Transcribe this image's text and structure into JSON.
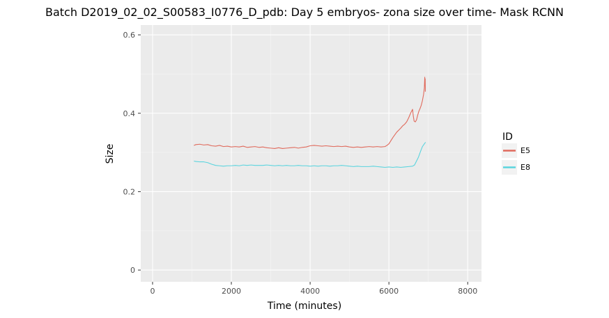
{
  "chart_data": {
    "type": "line",
    "title": "Batch D2019_02_02_S00583_I0776_D_pdb: Day 5 embryos- zona size over time- Mask RCNN",
    "xlabel": "Time (minutes)",
    "ylabel": "Size",
    "xlim": [
      -300,
      8350
    ],
    "ylim": [
      -0.03,
      0.625
    ],
    "xticks": [
      0,
      2000,
      4000,
      6000,
      8000
    ],
    "yticks": [
      0,
      0.2,
      0.4,
      0.6
    ],
    "xtick_labels": [
      "0",
      "2000",
      "4000",
      "6000",
      "8000"
    ],
    "ytick_labels": [
      "0",
      "0.2",
      "0.4",
      "0.6"
    ],
    "grid": true,
    "legend_position": "right",
    "legend_title": "ID",
    "series": [
      {
        "name": "E5",
        "color": "#e06a5c",
        "points": [
          [
            1050,
            0.318
          ],
          [
            1100,
            0.32
          ],
          [
            1200,
            0.321
          ],
          [
            1300,
            0.319
          ],
          [
            1400,
            0.32
          ],
          [
            1500,
            0.317
          ],
          [
            1600,
            0.316
          ],
          [
            1700,
            0.318
          ],
          [
            1800,
            0.315
          ],
          [
            1900,
            0.316
          ],
          [
            2000,
            0.314
          ],
          [
            2100,
            0.315
          ],
          [
            2200,
            0.314
          ],
          [
            2300,
            0.316
          ],
          [
            2400,
            0.313
          ],
          [
            2500,
            0.314
          ],
          [
            2600,
            0.315
          ],
          [
            2700,
            0.313
          ],
          [
            2800,
            0.314
          ],
          [
            2900,
            0.312
          ],
          [
            3000,
            0.311
          ],
          [
            3100,
            0.31
          ],
          [
            3200,
            0.312
          ],
          [
            3300,
            0.31
          ],
          [
            3400,
            0.311
          ],
          [
            3500,
            0.312
          ],
          [
            3600,
            0.313
          ],
          [
            3700,
            0.311
          ],
          [
            3800,
            0.313
          ],
          [
            3900,
            0.314
          ],
          [
            4000,
            0.317
          ],
          [
            4100,
            0.318
          ],
          [
            4200,
            0.317
          ],
          [
            4300,
            0.316
          ],
          [
            4400,
            0.317
          ],
          [
            4500,
            0.316
          ],
          [
            4600,
            0.315
          ],
          [
            4700,
            0.316
          ],
          [
            4800,
            0.315
          ],
          [
            4900,
            0.316
          ],
          [
            5000,
            0.314
          ],
          [
            5100,
            0.313
          ],
          [
            5200,
            0.314
          ],
          [
            5300,
            0.313
          ],
          [
            5400,
            0.314
          ],
          [
            5500,
            0.315
          ],
          [
            5600,
            0.314
          ],
          [
            5700,
            0.315
          ],
          [
            5800,
            0.314
          ],
          [
            5900,
            0.315
          ],
          [
            5950,
            0.318
          ],
          [
            6000,
            0.322
          ],
          [
            6050,
            0.33
          ],
          [
            6100,
            0.338
          ],
          [
            6150,
            0.345
          ],
          [
            6200,
            0.352
          ],
          [
            6250,
            0.357
          ],
          [
            6300,
            0.362
          ],
          [
            6350,
            0.368
          ],
          [
            6400,
            0.372
          ],
          [
            6450,
            0.378
          ],
          [
            6500,
            0.388
          ],
          [
            6550,
            0.4
          ],
          [
            6600,
            0.41
          ],
          [
            6620,
            0.392
          ],
          [
            6640,
            0.38
          ],
          [
            6670,
            0.378
          ],
          [
            6700,
            0.383
          ],
          [
            6730,
            0.395
          ],
          [
            6760,
            0.405
          ],
          [
            6790,
            0.412
          ],
          [
            6820,
            0.42
          ],
          [
            6850,
            0.432
          ],
          [
            6880,
            0.448
          ],
          [
            6900,
            0.465
          ],
          [
            6910,
            0.492
          ],
          [
            6915,
            0.47
          ],
          [
            6920,
            0.488
          ],
          [
            6925,
            0.455
          ]
        ]
      },
      {
        "name": "E8",
        "color": "#5ad4de",
        "points": [
          [
            1050,
            0.278
          ],
          [
            1100,
            0.277
          ],
          [
            1200,
            0.276
          ],
          [
            1300,
            0.276
          ],
          [
            1400,
            0.274
          ],
          [
            1500,
            0.27
          ],
          [
            1600,
            0.267
          ],
          [
            1700,
            0.266
          ],
          [
            1800,
            0.265
          ],
          [
            1900,
            0.266
          ],
          [
            2000,
            0.266
          ],
          [
            2100,
            0.267
          ],
          [
            2200,
            0.266
          ],
          [
            2300,
            0.268
          ],
          [
            2400,
            0.267
          ],
          [
            2500,
            0.268
          ],
          [
            2600,
            0.267
          ],
          [
            2700,
            0.267
          ],
          [
            2800,
            0.267
          ],
          [
            2900,
            0.268
          ],
          [
            3000,
            0.267
          ],
          [
            3100,
            0.266
          ],
          [
            3200,
            0.267
          ],
          [
            3300,
            0.266
          ],
          [
            3400,
            0.267
          ],
          [
            3500,
            0.266
          ],
          [
            3600,
            0.266
          ],
          [
            3700,
            0.267
          ],
          [
            3800,
            0.266
          ],
          [
            3900,
            0.266
          ],
          [
            4000,
            0.265
          ],
          [
            4100,
            0.266
          ],
          [
            4200,
            0.265
          ],
          [
            4300,
            0.266
          ],
          [
            4400,
            0.266
          ],
          [
            4500,
            0.265
          ],
          [
            4600,
            0.266
          ],
          [
            4700,
            0.266
          ],
          [
            4800,
            0.267
          ],
          [
            4900,
            0.266
          ],
          [
            5000,
            0.265
          ],
          [
            5100,
            0.264
          ],
          [
            5200,
            0.265
          ],
          [
            5300,
            0.264
          ],
          [
            5400,
            0.264
          ],
          [
            5500,
            0.264
          ],
          [
            5600,
            0.265
          ],
          [
            5700,
            0.264
          ],
          [
            5800,
            0.263
          ],
          [
            5900,
            0.262
          ],
          [
            6000,
            0.263
          ],
          [
            6100,
            0.262
          ],
          [
            6200,
            0.263
          ],
          [
            6300,
            0.262
          ],
          [
            6400,
            0.263
          ],
          [
            6500,
            0.264
          ],
          [
            6600,
            0.265
          ],
          [
            6650,
            0.268
          ],
          [
            6700,
            0.278
          ],
          [
            6750,
            0.288
          ],
          [
            6800,
            0.302
          ],
          [
            6850,
            0.315
          ],
          [
            6900,
            0.322
          ],
          [
            6930,
            0.326
          ]
        ]
      }
    ]
  }
}
